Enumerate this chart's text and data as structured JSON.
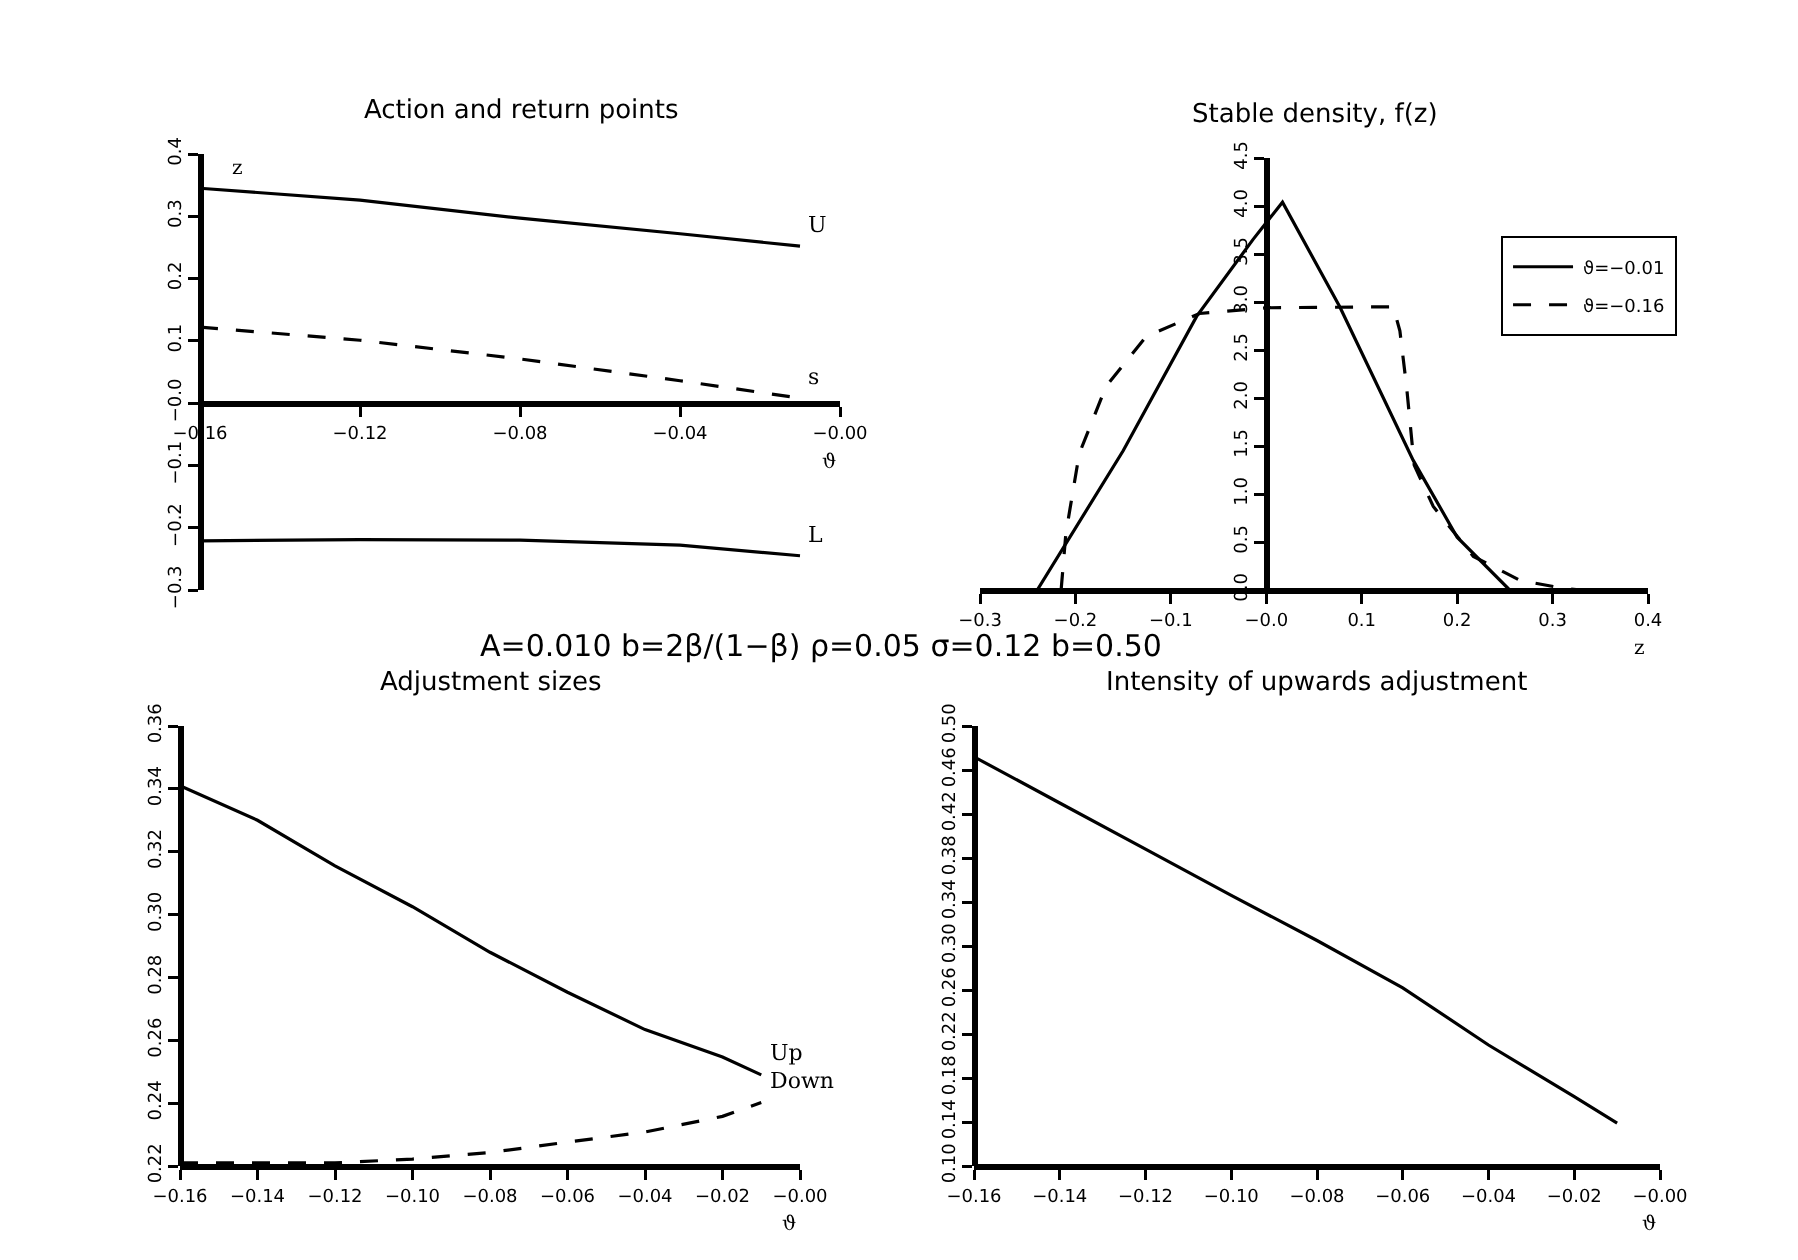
{
  "chart_data": [
    {
      "type": "line",
      "title": "Action and return points",
      "xlabel": "ϑ",
      "ylabel": "z",
      "x": [
        -0.16,
        -0.12,
        -0.08,
        -0.04,
        -0.01
      ],
      "series": [
        {
          "name": "U",
          "color": "#000000",
          "line_style": "solid",
          "values": [
            0.345,
            0.326,
            0.297,
            0.272,
            0.252
          ]
        },
        {
          "name": "s",
          "color": "#000000",
          "line_style": "dashed",
          "values": [
            0.122,
            0.101,
            0.071,
            0.036,
            0.008
          ]
        },
        {
          "name": "L",
          "color": "#000000",
          "line_style": "solid",
          "values": [
            -0.221,
            -0.219,
            -0.22,
            -0.228,
            -0.245
          ]
        }
      ],
      "xlim": [
        -0.16,
        0
      ],
      "xticks": [
        {
          "value": -0.16,
          "label": "−0.16"
        },
        {
          "value": -0.12,
          "label": "−0.12"
        },
        {
          "value": -0.08,
          "label": "−0.08"
        },
        {
          "value": -0.04,
          "label": "−0.04"
        },
        {
          "value": 0,
          "label": "−0.00"
        }
      ],
      "ylim": [
        -0.3,
        0.4
      ],
      "yticks": [
        {
          "value": -0.3,
          "label": "−0.3"
        },
        {
          "value": -0.2,
          "label": "−0.2"
        },
        {
          "value": -0.1,
          "label": "−0.1"
        },
        {
          "value": 0,
          "label": "−0.0"
        },
        0.1,
        0.2,
        0.3,
        0.4
      ]
    },
    {
      "type": "line",
      "title": "Stable density, f(z)",
      "xlabel": "z",
      "legend": "right",
      "series": [
        {
          "name": "ϑ=−0.01",
          "color": "#000000",
          "line_style": "solid",
          "x": [
            -0.24,
            -0.15,
            -0.073,
            -0.014,
            0.017,
            0.077,
            0.154,
            0.2,
            0.255
          ],
          "values": [
            0,
            1.45,
            2.85,
            3.65,
            4.04,
            2.95,
            1.35,
            0.55,
            0
          ]
        },
        {
          "name": "ϑ=−0.16",
          "color": "#000000",
          "line_style": "dashed",
          "x": [
            -0.215,
            -0.21,
            -0.196,
            -0.168,
            -0.126,
            -0.07,
            0,
            0.133,
            0.14,
            0.147,
            0.155,
            0.175,
            0.217,
            0.266,
            0.31,
            0.33
          ],
          "values": [
            0,
            0.59,
            1.42,
            2.12,
            2.64,
            2.88,
            2.94,
            2.95,
            2.7,
            2.12,
            1.3,
            0.87,
            0.35,
            0.1,
            0.02,
            0
          ]
        }
      ],
      "xlim": [
        -0.3,
        0.4
      ],
      "xticks": [
        {
          "value": -0.3,
          "label": "−0.3"
        },
        {
          "value": -0.2,
          "label": "−0.2"
        },
        {
          "value": -0.1,
          "label": "−0.1"
        },
        {
          "value": 0,
          "label": "−0.0"
        },
        0.1,
        0.2,
        0.3,
        0.4
      ],
      "ylim": [
        0,
        4.5
      ],
      "yticks": [
        {
          "value": 0,
          "label": "0.0"
        },
        0.5,
        {
          "value": 1,
          "label": "1.0"
        },
        1.5,
        {
          "value": 2,
          "label": "2.0"
        },
        2.5,
        {
          "value": 3,
          "label": "3.0"
        },
        3.5,
        {
          "value": 4,
          "label": "4.0"
        },
        4.5
      ]
    },
    {
      "type": "line",
      "title": "Adjustment sizes",
      "xlabel": "ϑ",
      "annotations": [
        "A=0.010 b=2β/(1−β) ρ=0.05 σ=0.12 b=0.50"
      ],
      "x": [
        -0.16,
        -0.14,
        -0.12,
        -0.1,
        -0.08,
        -0.06,
        -0.04,
        -0.02,
        -0.01
      ],
      "series": [
        {
          "name": "Up",
          "color": "#000000",
          "line_style": "solid",
          "values": [
            0.341,
            0.33,
            0.3155,
            0.3025,
            0.288,
            0.2753,
            0.2634,
            0.2547,
            0.249
          ]
        },
        {
          "name": "Down",
          "color": "#000000",
          "line_style": "dashed",
          "values": [
            0.221,
            0.221,
            0.221,
            0.2222,
            0.2243,
            0.2276,
            0.2308,
            0.2358,
            0.2402
          ]
        }
      ],
      "xlim": [
        -0.16,
        0
      ],
      "xticks": [
        {
          "value": -0.16,
          "label": "−0.16"
        },
        {
          "value": -0.14,
          "label": "−0.14"
        },
        {
          "value": -0.12,
          "label": "−0.12"
        },
        {
          "value": -0.1,
          "label": "−0.10"
        },
        {
          "value": -0.08,
          "label": "−0.08"
        },
        {
          "value": -0.06,
          "label": "−0.06"
        },
        {
          "value": -0.04,
          "label": "−0.04"
        },
        {
          "value": -0.02,
          "label": "−0.02"
        },
        {
          "value": 0,
          "label": "−0.00"
        }
      ],
      "ylim": [
        0.22,
        0.36
      ],
      "yticks": [
        0.22,
        0.24,
        0.26,
        0.28,
        {
          "value": 0.3,
          "label": "0.30"
        },
        0.32,
        0.34,
        0.36
      ]
    },
    {
      "type": "line",
      "title": "Intensity of upwards adjustment",
      "xlabel": "ϑ",
      "x": [
        -0.16,
        -0.14,
        -0.12,
        -0.1,
        -0.08,
        -0.06,
        -0.04,
        -0.02,
        -0.01
      ],
      "series": [
        {
          "color": "#000000",
          "line_style": "solid",
          "values": [
            0.472,
            0.43,
            0.388,
            0.346,
            0.305,
            0.262,
            0.21,
            0.163,
            0.139
          ]
        }
      ],
      "xlim": [
        -0.16,
        0
      ],
      "xticks": [
        {
          "value": -0.16,
          "label": "−0.16"
        },
        {
          "value": -0.14,
          "label": "−0.14"
        },
        {
          "value": -0.12,
          "label": "−0.12"
        },
        {
          "value": -0.1,
          "label": "−0.10"
        },
        {
          "value": -0.08,
          "label": "−0.08"
        },
        {
          "value": -0.06,
          "label": "−0.06"
        },
        {
          "value": -0.04,
          "label": "−0.04"
        },
        {
          "value": -0.02,
          "label": "−0.02"
        },
        {
          "value": 0,
          "label": "−0.00"
        }
      ],
      "ylim": [
        0.1,
        0.5
      ],
      "yticks": [
        {
          "value": 0.1,
          "label": "0.10"
        },
        0.14,
        0.18,
        0.22,
        0.26,
        {
          "value": 0.3,
          "label": "0.30"
        },
        0.34,
        0.38,
        0.42,
        0.46,
        {
          "value": 0.5,
          "label": "0.50"
        }
      ]
    }
  ]
}
